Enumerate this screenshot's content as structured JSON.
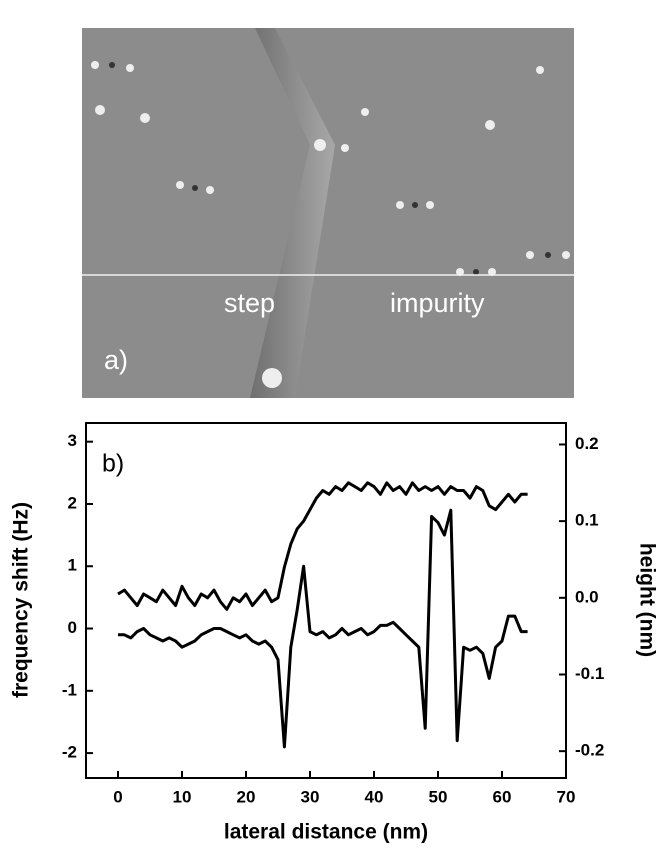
{
  "image": {
    "panel_label": "a)",
    "labels": [
      "step",
      "impurity"
    ]
  },
  "chart_data": {
    "type": "line",
    "panel_label": "b)",
    "x_label": "lateral distance (nm)",
    "y_label": "frequency shift (Hz)",
    "y2_label": "height (nm)",
    "xlim": [
      -5,
      70
    ],
    "xticks": [
      0,
      10,
      20,
      30,
      40,
      50,
      60,
      70
    ],
    "ylim": [
      -2.4,
      3.3
    ],
    "yticks": [
      -2,
      -1,
      0,
      1,
      2,
      3
    ],
    "y2lim": [
      -0.235,
      0.228
    ],
    "y2ticks": [
      -0.2,
      -0.1,
      {
        "value": 0,
        "label": "0.0"
      },
      0.1,
      0.2
    ],
    "x": [
      0,
      1,
      2,
      3,
      4,
      5,
      6,
      7,
      8,
      9,
      10,
      11,
      12,
      13,
      14,
      15,
      16,
      17,
      18,
      19,
      20,
      21,
      22,
      23,
      24,
      25,
      26,
      27,
      28,
      29,
      30,
      31,
      32,
      33,
      34,
      35,
      36,
      37,
      38,
      39,
      40,
      41,
      42,
      43,
      44,
      45,
      46,
      47,
      48,
      49,
      50,
      51,
      52,
      53,
      54,
      55,
      56,
      57,
      58,
      59,
      60,
      61,
      62,
      63,
      64
    ],
    "series": [
      {
        "color": "#000000",
        "axis": "y",
        "values": [
          -0.1,
          -0.1,
          -0.15,
          -0.05,
          0,
          -0.1,
          -0.15,
          -0.2,
          -0.15,
          -0.2,
          -0.3,
          -0.25,
          -0.2,
          -0.1,
          -0.05,
          0,
          0,
          -0.05,
          -0.1,
          -0.15,
          -0.1,
          -0.2,
          -0.25,
          -0.2,
          -0.3,
          -0.5,
          -1.9,
          -0.3,
          0.3,
          1.0,
          -0.05,
          -0.1,
          -0.05,
          -0.15,
          -0.1,
          0,
          -0.1,
          -0.05,
          0,
          -0.1,
          -0.05,
          0.05,
          0.05,
          0.1,
          0,
          -0.1,
          -0.2,
          -0.3,
          -1.6,
          1.8,
          1.7,
          1.5,
          1.9,
          -1.8,
          -0.3,
          -0.35,
          -0.3,
          -0.4,
          -0.8,
          -0.3,
          -0.2,
          0.2,
          0.2,
          -0.05,
          -0.05
        ]
      },
      {
        "color": "#000000",
        "axis": "y2",
        "values": [
          0.005,
          0.01,
          0,
          -0.01,
          0.005,
          0,
          -0.005,
          0.01,
          0,
          -0.01,
          0.015,
          0,
          -0.01,
          0.005,
          0,
          0.01,
          -0.005,
          -0.015,
          0,
          -0.005,
          0.005,
          -0.01,
          0,
          0.01,
          -0.005,
          0,
          0.04,
          0.07,
          0.09,
          0.1,
          0.115,
          0.13,
          0.14,
          0.135,
          0.145,
          0.14,
          0.15,
          0.145,
          0.14,
          0.15,
          0.145,
          0.135,
          0.15,
          0.14,
          0.145,
          0.135,
          0.15,
          0.14,
          0.145,
          0.14,
          0.145,
          0.135,
          0.145,
          0.14,
          0.14,
          0.13,
          0.145,
          0.14,
          0.12,
          0.115,
          0.125,
          0.135,
          0.125,
          0.135,
          0.135
        ]
      }
    ]
  }
}
